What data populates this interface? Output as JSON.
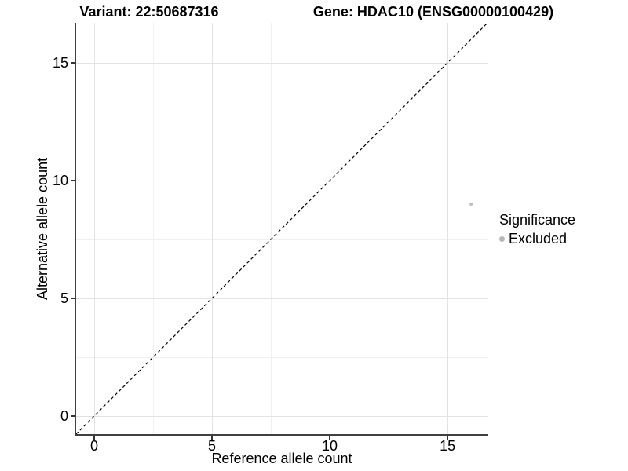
{
  "header": {
    "variant_title": "Variant: 22:50687316",
    "gene_title": "Gene: HDAC10 (ENSG00000100429)"
  },
  "axes": {
    "x_label": "Reference allele count",
    "y_label": "Alternative allele count",
    "x_tick_labels": [
      "0",
      "5",
      "10",
      "15"
    ],
    "y_tick_labels": [
      "0",
      "5",
      "10",
      "15"
    ]
  },
  "legend": {
    "title": "Significance",
    "items": [
      {
        "label": "Excluded",
        "color": "#b7b7b7"
      }
    ]
  },
  "chart_data": {
    "type": "scatter",
    "title": "Variant: 22:50687316 — Gene: HDAC10 (ENSG00000100429)",
    "xlabel": "Reference allele count",
    "ylabel": "Alternative allele count",
    "xlim": [
      -0.8,
      16.73
    ],
    "ylim": [
      -0.77,
      16.7
    ],
    "x_major_ticks": [
      0,
      5,
      10,
      15
    ],
    "x_minor_ticks": [
      2.5,
      7.5,
      12.5
    ],
    "y_major_ticks": [
      0,
      5,
      10,
      15
    ],
    "y_minor_ticks": [
      2.5,
      7.5,
      12.5
    ],
    "grid": "major and minor light grey gridlines on white panel",
    "legend_position": "right",
    "reference_line": {
      "kind": "identity y=x",
      "style": "dashed",
      "color": "#000000"
    },
    "series": [
      {
        "name": "Excluded",
        "color": "#bebebe",
        "point_radius_px": 2,
        "points": [
          {
            "x": 16,
            "y": 9
          }
        ]
      }
    ]
  },
  "colors": {
    "background": "#ffffff",
    "grid_major": "#e3e3e3",
    "grid_minor": "#f0f0f0",
    "axis_line": "#404040",
    "tick_mark": "#333333",
    "text": "#000000"
  }
}
